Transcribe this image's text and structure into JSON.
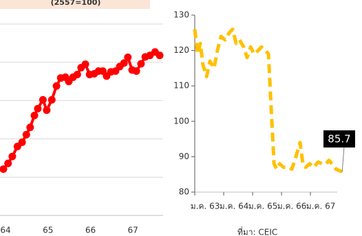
{
  "chart_data": [
    {
      "type": "line",
      "title": "(2557=100)",
      "x": [
        63.95,
        64.06,
        64.16,
        64.28,
        64.39,
        64.49,
        64.58,
        64.68,
        64.76,
        64.88,
        64.97,
        65.09,
        65.2,
        65.3,
        65.41,
        65.49,
        65.59,
        65.69,
        65.78,
        65.88,
        65.98,
        66.09,
        66.19,
        66.29,
        66.38,
        66.48,
        66.59,
        66.69,
        66.79,
        66.88,
        66.98,
        67.08,
        67.19,
        67.29,
        67.4,
        67.52,
        67.63
      ],
      "series": [
        {
          "color": "#ff0000",
          "values": [
            1.21,
            1.36,
            1.54,
            1.8,
            1.91,
            2.11,
            2.3,
            2.61,
            2.79,
            3.02,
            2.75,
            3.02,
            3.38,
            3.59,
            3.61,
            3.5,
            3.61,
            3.68,
            3.86,
            3.95,
            3.68,
            3.7,
            3.77,
            3.77,
            3.64,
            3.75,
            3.77,
            3.89,
            3.98,
            4.13,
            3.8,
            3.77,
            3.96,
            4.14,
            4.18,
            4.27,
            4.18
          ]
        }
      ],
      "markers": true,
      "dashed": false,
      "grid": true,
      "ytick_labels": false,
      "xlim": [
        63.87,
        67.71
      ],
      "xticks": [
        64,
        65,
        66,
        67
      ],
      "ylim": [
        0,
        5
      ],
      "yticks": [
        1,
        2,
        3,
        4,
        5
      ]
    },
    {
      "type": "line",
      "x": [
        -4.3,
        -3.1,
        -2,
        -0.9,
        0.6,
        2,
        3.7,
        5.1,
        6.6,
        8.3,
        10,
        11.4,
        12.9,
        14.3,
        16,
        17.4,
        18.9,
        20.3,
        22,
        23.4,
        25.1,
        26.3,
        27.4,
        28.6,
        29.7,
        30.9,
        32.6,
        34.3,
        36,
        37.7,
        39.4,
        40.6,
        41.7,
        43.4,
        45.1,
        46.9,
        48.6,
        50.3,
        51.4,
        52.6,
        54.3,
        56,
        56.9
      ],
      "series": [
        {
          "color": "#ffc000",
          "values": [
            126,
            119,
            122,
            116,
            112.6,
            117,
            115,
            120,
            124,
            123,
            125,
            126,
            122,
            123,
            121,
            118,
            121,
            119,
            120,
            121,
            120,
            119,
            104,
            88,
            86.5,
            88,
            87,
            87,
            86.5,
            90,
            94,
            88,
            87,
            88,
            87,
            88.5,
            88,
            88,
            89,
            88,
            86.5,
            86,
            85.7
          ]
        }
      ],
      "markers": false,
      "dashed": true,
      "grid": false,
      "ytick_labels": true,
      "label_last": true,
      "xlim": [
        -4.3,
        57.7
      ],
      "xticks": [
        {
          "value": 0,
          "label": "ม.ค. 63"
        },
        {
          "value": 12,
          "label": "ม.ค. 64"
        },
        {
          "value": 24,
          "label": "ม.ค. 65"
        },
        {
          "value": 36,
          "label": "ม.ค. 66"
        },
        {
          "value": 48,
          "label": "ม.ค. 67"
        }
      ],
      "ylim": [
        80,
        130
      ],
      "yticks": [
        80,
        90,
        100,
        110,
        120,
        130
      ],
      "source": "ที่มา: CEIC"
    }
  ]
}
